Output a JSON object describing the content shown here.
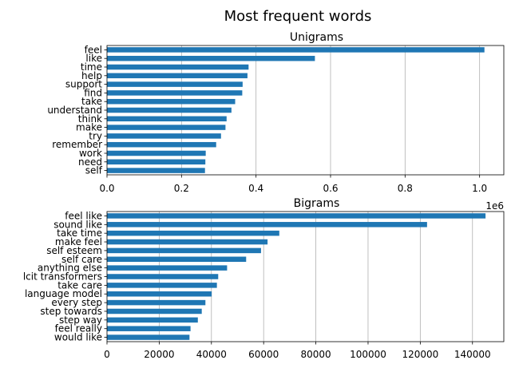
{
  "suptitle": "Most frequent words",
  "bar_color": "#1f77b4",
  "chart_data": [
    {
      "type": "bar",
      "orientation": "horizontal",
      "title": "Unigrams",
      "categories": [
        "feel",
        "like",
        "time",
        "help",
        "support",
        "find",
        "take",
        "understand",
        "think",
        "make",
        "try",
        "remember",
        "work",
        "need",
        "self"
      ],
      "values": [
        1013000,
        558000,
        380000,
        377000,
        364000,
        363000,
        344000,
        334000,
        321000,
        318000,
        306000,
        293000,
        265000,
        264000,
        263000
      ],
      "xlim": [
        0,
        1065000
      ],
      "x_ticks": [
        0,
        200000,
        400000,
        600000,
        800000,
        1000000
      ],
      "x_tick_labels": [
        "0.0",
        "0.2",
        "0.4",
        "0.6",
        "0.8",
        "1.0"
      ],
      "offset_label": "1e6",
      "grid": "x"
    },
    {
      "type": "bar",
      "orientation": "horizontal",
      "title": "Bigrams",
      "categories": [
        "feel like",
        "sound like",
        "take time",
        "make feel",
        "self esteem",
        "self care",
        "anything else",
        "lcit transformers",
        "take care",
        "language model",
        "every step",
        "step towards",
        "step way",
        "feel really",
        "would like"
      ],
      "values": [
        145000,
        122600,
        66000,
        61500,
        59000,
        53300,
        46000,
        42600,
        42100,
        40100,
        37700,
        36300,
        34800,
        32000,
        31600
      ],
      "xlim": [
        0,
        152000
      ],
      "x_ticks": [
        0,
        20000,
        40000,
        60000,
        80000,
        100000,
        120000,
        140000
      ],
      "x_tick_labels": [
        "0",
        "20000",
        "40000",
        "60000",
        "80000",
        "100000",
        "120000",
        "140000"
      ],
      "grid": "x"
    }
  ]
}
